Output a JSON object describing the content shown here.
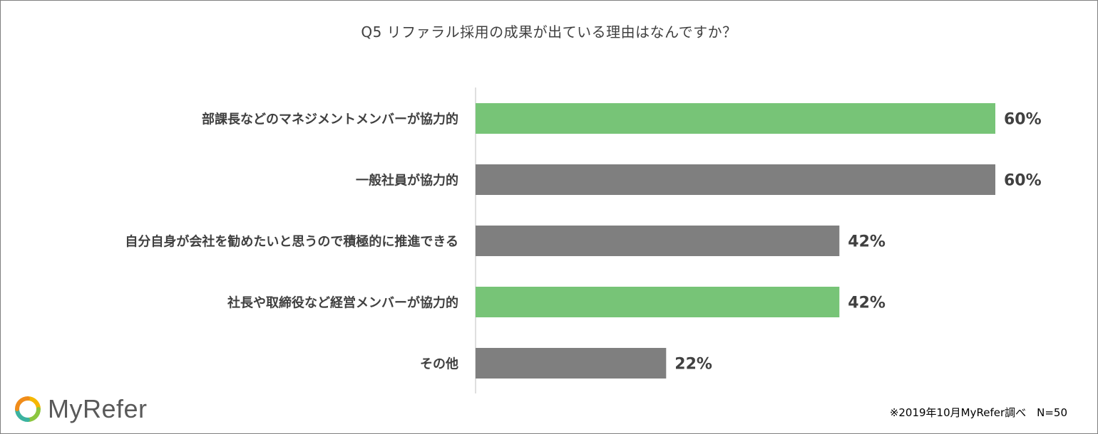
{
  "chart_data": {
    "type": "bar",
    "orientation": "horizontal",
    "title": "Q5 リファラル採用の成果が出ている理由はなんですか？",
    "categories": [
      "部課長などのマネジメントメンバーが協力的",
      "一般社員が協力的",
      "自分自身が会社を勧めたいと思うので積極的に推進できる",
      "社長や取締役など経営メンバーが協力的",
      "その他"
    ],
    "values": [
      60,
      60,
      42,
      42,
      22
    ],
    "value_labels": [
      "60%",
      "60%",
      "42%",
      "42%",
      "22%"
    ],
    "bar_colors": [
      "#77c477",
      "#7f7f7f",
      "#7f7f7f",
      "#77c477",
      "#7f7f7f"
    ],
    "xlim": [
      0,
      60
    ],
    "grid": false,
    "legend": "none"
  },
  "logo": {
    "text": "MyRefer"
  },
  "footnote": "※2019年10月MyRefer調べ　N=50"
}
